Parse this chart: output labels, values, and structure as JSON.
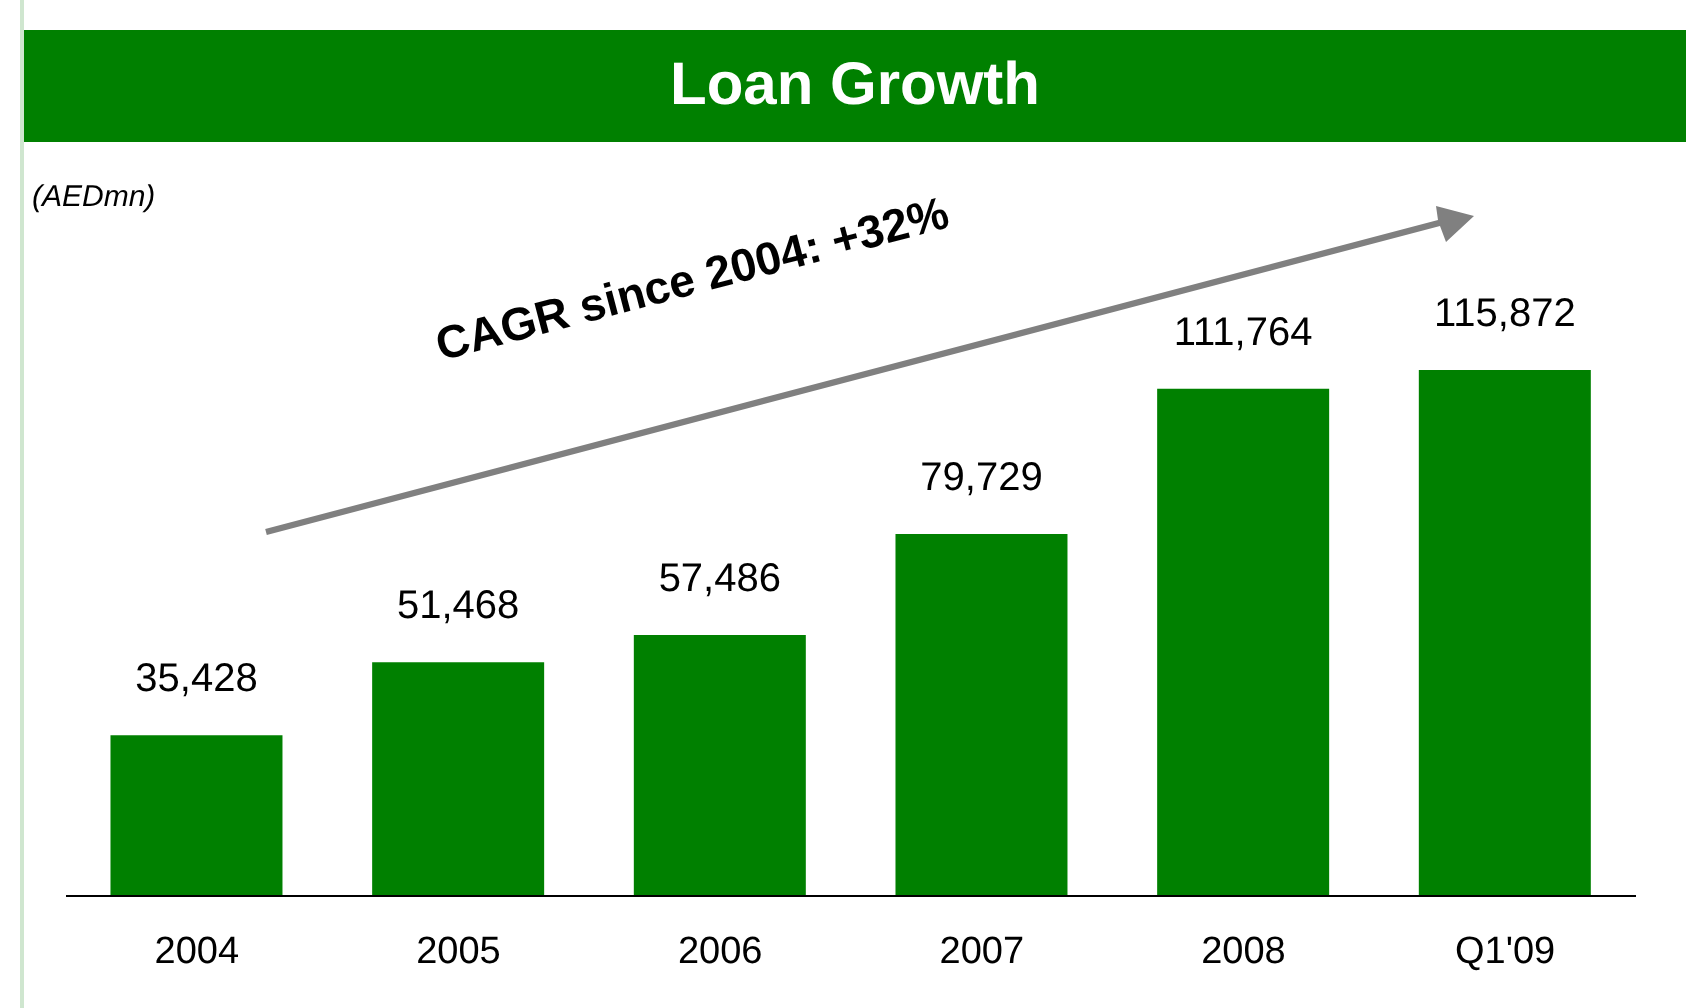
{
  "chart_data": {
    "type": "bar",
    "title": "Loan Growth",
    "categories": [
      "2004",
      "2005",
      "2006",
      "2007",
      "2008",
      "Q1'09"
    ],
    "values": [
      35428,
      51468,
      57486,
      79729,
      111764,
      115872
    ],
    "value_labels": [
      "35,428",
      "51,468",
      "57,486",
      "79,729",
      "111,764",
      "115,872"
    ],
    "color": "#008000",
    "annotations": [
      "(AEDmn)",
      "CAGR since 2004: +32%"
    ]
  }
}
